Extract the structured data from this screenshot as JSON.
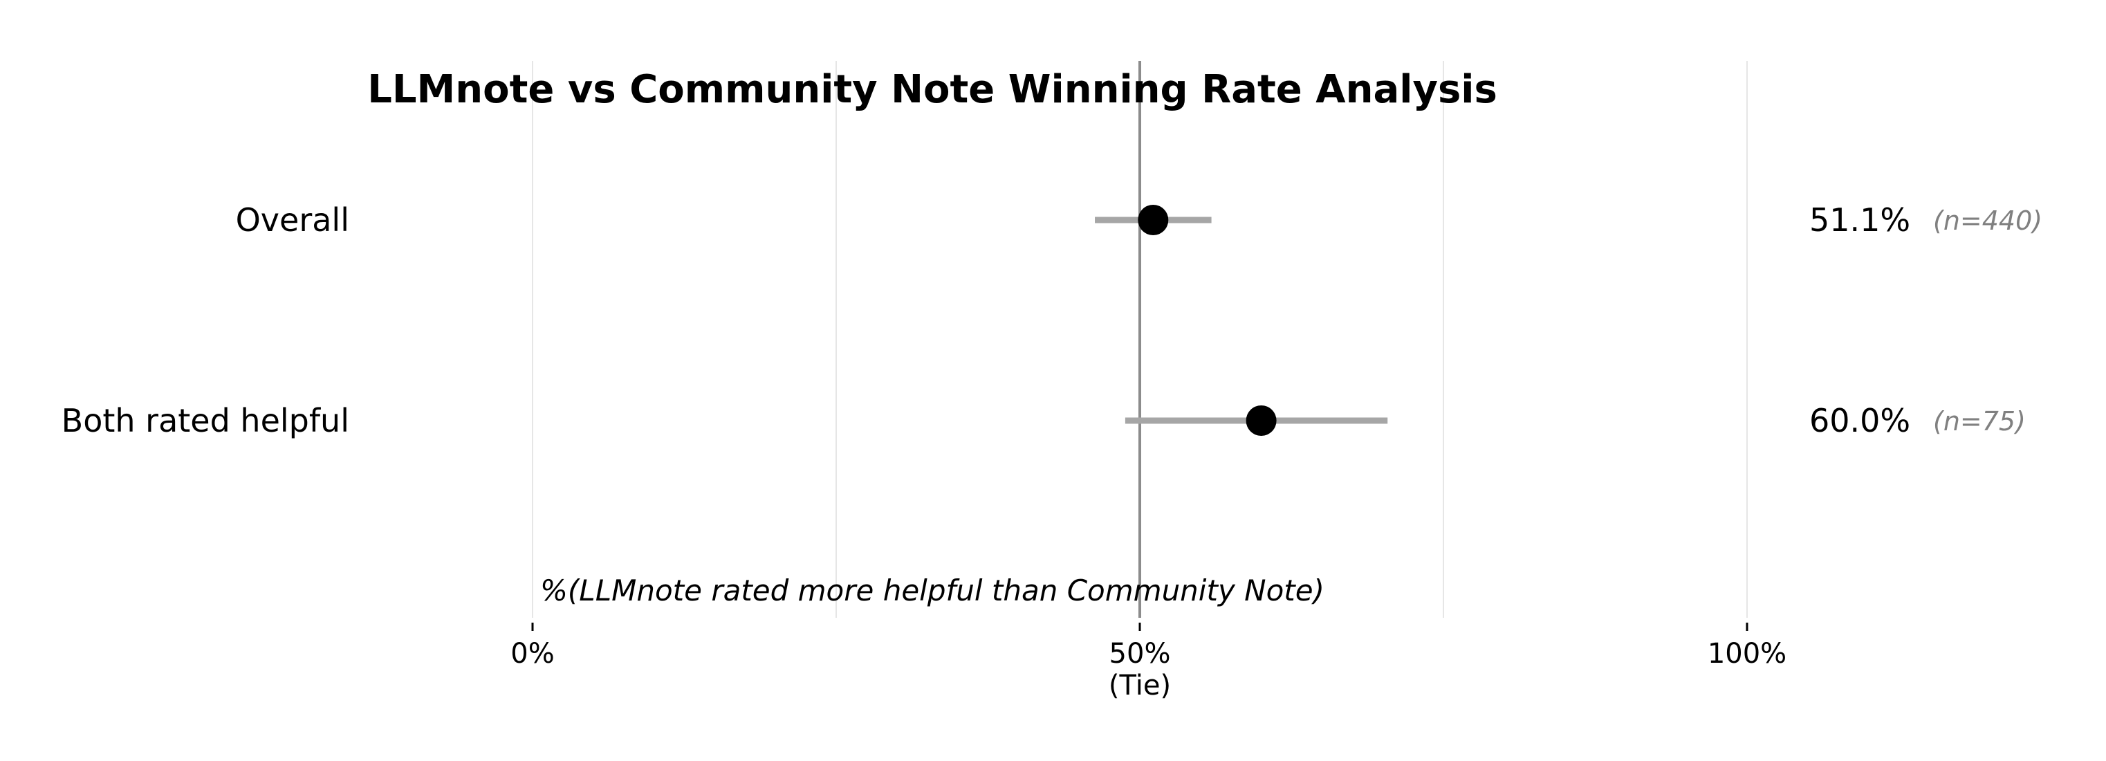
{
  "chart_data": {
    "type": "scatter",
    "title": "LLMnote vs Community Note Winning Rate Analysis",
    "xlabel": "%(LLMnote rated more helpful than Community Note)",
    "ylabel": "",
    "xlim": [
      0,
      100
    ],
    "x_ticks": [
      {
        "value": 0,
        "label": "0%"
      },
      {
        "value": 50,
        "label": "50%",
        "sublabel": "(Tie)"
      },
      {
        "value": 100,
        "label": "100%"
      }
    ],
    "minor_gridlines": [
      0,
      25,
      75,
      100
    ],
    "reference_line": 50,
    "grid": true,
    "categories": [
      "Overall",
      "Both rated helpful"
    ],
    "points": [
      {
        "category": "Overall",
        "value": 51.1,
        "ci_low": 46.3,
        "ci_high": 55.9,
        "label": "51.1%",
        "n_label": "(n=440)"
      },
      {
        "category": "Both rated helpful",
        "value": 60.0,
        "ci_low": 48.8,
        "ci_high": 70.4,
        "label": "60.0%",
        "n_label": "(n=75)"
      }
    ]
  },
  "colors": {
    "marker": "#000000",
    "error_bar": "#a6a6a6",
    "reference_line": "#8c8c8c",
    "grid": "#e6e6e6",
    "n_label": "#808080"
  }
}
